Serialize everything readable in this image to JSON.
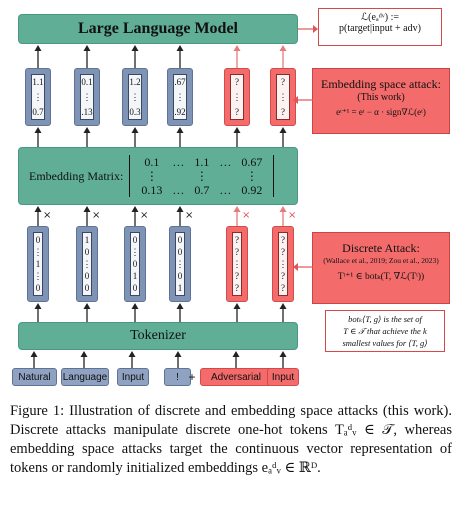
{
  "llm": {
    "title": "Large Language Model"
  },
  "loss_box": {
    "line1": "ℒ(eₐᵈᵛ) :=",
    "line2": "p(target|input + adv)"
  },
  "embedding_matrix": {
    "label": "Embedding Matrix:",
    "rows": [
      [
        "0.1",
        "…",
        "1.1",
        "…",
        "0.67"
      ],
      [
        "⋮",
        "",
        "⋮",
        "",
        "⋮"
      ],
      [
        "0.13",
        "…",
        "0.7",
        "…",
        "0.92"
      ]
    ]
  },
  "embeddings": [
    {
      "top": "1.1",
      "mid": "⋮",
      "bot": "0.7",
      "kind": "blue"
    },
    {
      "top": "0.1",
      "mid": "⋮",
      "bot": ".13",
      "kind": "blue"
    },
    {
      "top": "1.2",
      "mid": "⋮",
      "bot": "0.3",
      "kind": "blue"
    },
    {
      "top": ".67",
      "mid": "⋮",
      "bot": ".92",
      "kind": "blue"
    },
    {
      "top": "?",
      "mid": "⋮",
      "bot": "?",
      "kind": "red"
    },
    {
      "top": "?",
      "mid": "⋮",
      "bot": "?",
      "kind": "red"
    }
  ],
  "onehots": [
    {
      "vals": [
        "0",
        "⋮",
        "1",
        "⋮",
        "0"
      ],
      "kind": "blue"
    },
    {
      "vals": [
        "1",
        "0",
        "⋮",
        "0",
        "0"
      ],
      "kind": "blue"
    },
    {
      "vals": [
        "0",
        "⋮",
        "0",
        "1",
        "0"
      ],
      "kind": "blue"
    },
    {
      "vals": [
        "0",
        "0",
        "⋮",
        "0",
        "1"
      ],
      "kind": "blue"
    },
    {
      "vals": [
        "?",
        "?",
        "⋮",
        "?",
        "?"
      ],
      "kind": "red"
    },
    {
      "vals": [
        "?",
        "?",
        "⋮",
        "?",
        "?"
      ],
      "kind": "red"
    }
  ],
  "times_symbol": "×",
  "tokenizer": {
    "title": "Tokenizer"
  },
  "tokens": [
    {
      "label": "Natural",
      "kind": "blue"
    },
    {
      "label": "Language",
      "kind": "blue"
    },
    {
      "label": "Input",
      "kind": "blue"
    },
    {
      "label": "!",
      "kind": "blue"
    },
    {
      "label": "+",
      "kind": "plus"
    },
    {
      "label": "Adversarial",
      "kind": "red"
    },
    {
      "label": "Input",
      "kind": "red"
    }
  ],
  "embedding_attack": {
    "title": "Embedding space attack:",
    "subtitle": "(This work)",
    "formula": "eᵗ⁺¹ = eᵗ − α · sign∇ℒ(eᵗ)"
  },
  "discrete_attack": {
    "title": "Discrete Attack:",
    "citation": "(Wallace et al., 2019; Zou et al., 2023)",
    "formula": "Tᵗ⁺¹ ∈ botₖ(T, ∇ℒ(Tᵗ))"
  },
  "botk_note": {
    "line1": "botₖ⟨T, g⟩ is the set of",
    "line2": "T ∈ 𝒯 that achieve the k",
    "line3": "smallest values for ⟨T, g⟩"
  },
  "caption": "Figure 1: Illustration of discrete and embedding space attacks (this work). Discrete attacks manipulate discrete one-hot tokens Tₐᵈᵥ ∈ 𝒯, whereas embedding space attacks target the continuous vector representation of tokens or randomly initialized embeddings eₐᵈᵥ ∈ ℝᴰ.",
  "colors": {
    "green": "#5fae95",
    "blue": "#7f93b5",
    "red": "#f36b6b"
  }
}
